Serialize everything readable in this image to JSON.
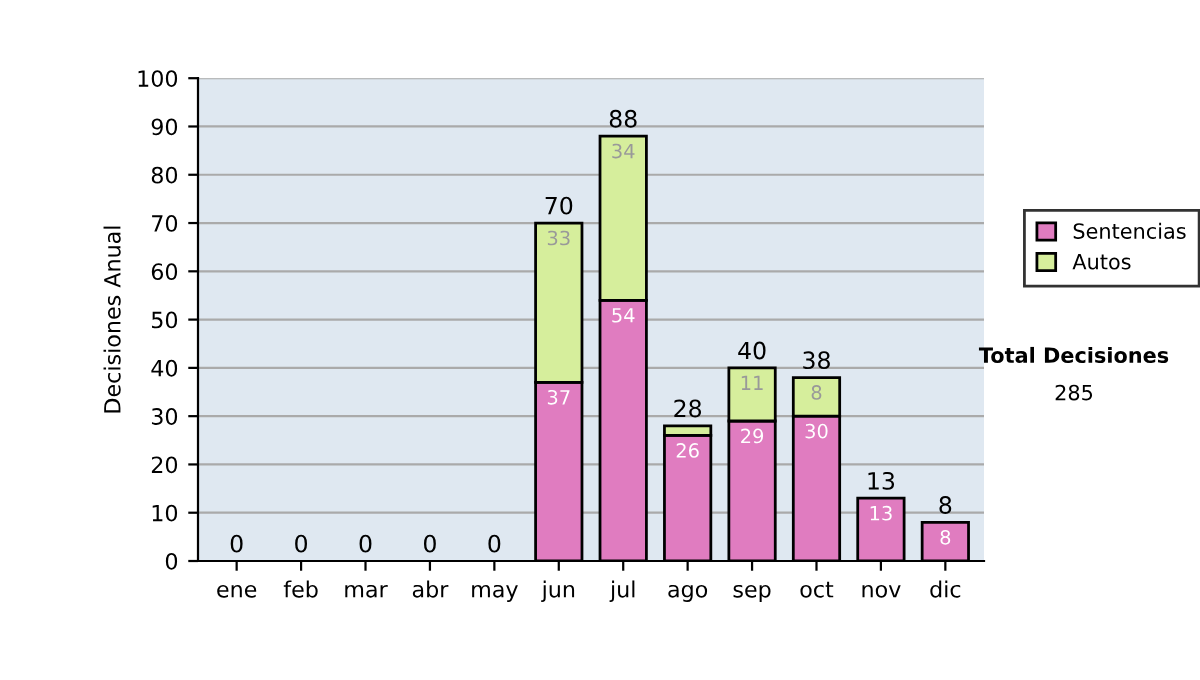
{
  "chart_data": {
    "type": "bar",
    "stacked": true,
    "ylabel": "Decisiones Anual",
    "categories": [
      "ene",
      "feb",
      "mar",
      "abr",
      "may",
      "jun",
      "jul",
      "ago",
      "sep",
      "oct",
      "nov",
      "dic"
    ],
    "series": [
      {
        "name": "Sentencias",
        "color": "#e07cc0",
        "values": [
          0,
          0,
          0,
          0,
          0,
          37,
          54,
          26,
          29,
          30,
          13,
          8
        ],
        "value_labels": [
          null,
          null,
          null,
          null,
          null,
          "37",
          "54",
          "26",
          "29",
          "30",
          "13",
          "8"
        ]
      },
      {
        "name": "Autos",
        "color": "#d6ee9c",
        "values": [
          0,
          0,
          0,
          0,
          0,
          33,
          34,
          2,
          11,
          8,
          0,
          0
        ],
        "value_labels": [
          null,
          null,
          null,
          null,
          null,
          "33",
          "34",
          null,
          "11",
          "8",
          null,
          null
        ]
      }
    ],
    "totals": [
      "0",
      "0",
      "0",
      "0",
      "0",
      "70",
      "88",
      "28",
      "40",
      "38",
      "13",
      "8"
    ],
    "ylim": [
      0,
      100
    ],
    "yticks": [
      0,
      10,
      20,
      30,
      40,
      50,
      60,
      70,
      80,
      90,
      100
    ],
    "grid": "y",
    "legend": "right",
    "annotations": [
      "Total Decisiones",
      "285"
    ]
  }
}
